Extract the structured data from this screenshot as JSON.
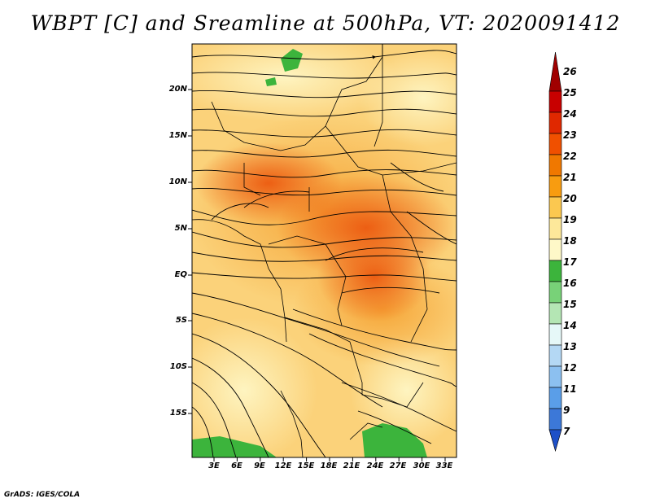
{
  "title": "WBPT [C] and Sreamline at 500hPa, VT: 2020091412",
  "credit": "GrADS: IGES/COLA",
  "map": {
    "lat_labels": [
      "20N",
      "15N",
      "10N",
      "5N",
      "EQ",
      "5S",
      "10S",
      "15S"
    ],
    "lon_labels": [
      "3E",
      "6E",
      "9E",
      "12E",
      "15E",
      "18E",
      "21E",
      "24E",
      "27E",
      "30E",
      "33E"
    ],
    "lat_range": [
      -20,
      24.5
    ],
    "lon_range": [
      -0.5,
      34.5
    ]
  },
  "colorbar": {
    "labels": [
      "26",
      "25",
      "24",
      "23",
      "22",
      "21",
      "20",
      "19",
      "18",
      "17",
      "16",
      "15",
      "14",
      "13",
      "12",
      "11",
      "9",
      "7"
    ],
    "colors": [
      "#a00000",
      "#c80000",
      "#e02800",
      "#f05000",
      "#f07800",
      "#f89c10",
      "#fbc850",
      "#fde89a",
      "#fef8c8",
      "#3cb43c",
      "#78d278",
      "#b4e6b4",
      "#e6f8f8",
      "#b4d8f4",
      "#8cc0f0",
      "#5a9ee8",
      "#3c78d8",
      "#1e50c8"
    ]
  }
}
